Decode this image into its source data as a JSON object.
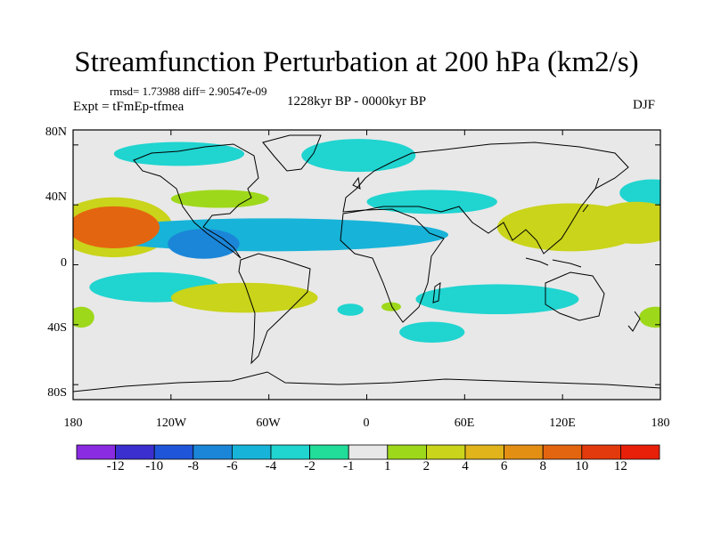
{
  "header": {
    "title": "Streamfunction Perturbation at 200 hPa (km2/s)",
    "stats": "rmsd= 1.73988 diff= 2.90547e-09",
    "experiment": "Expt = tFmEp-tfmea",
    "period": "1228kyr BP - 0000kyr BP",
    "season": "DJF"
  },
  "axes": {
    "lat_labels": [
      "80N",
      "40N",
      "0",
      "40S",
      "80S"
    ],
    "lon_labels": [
      "180",
      "120W",
      "60W",
      "0",
      "60E",
      "120E",
      "180"
    ]
  },
  "colorbar": {
    "labels": [
      "-12",
      "-10",
      "-8",
      "-6",
      "-4",
      "-2",
      "-1",
      "1",
      "2",
      "4",
      "6",
      "8",
      "10",
      "12"
    ],
    "colors": [
      "#8a2be2",
      "#3b2fd0",
      "#1f55d8",
      "#1b86d8",
      "#18b3d8",
      "#20d4d0",
      "#22dc9a",
      "#e8e8e8",
      "#9ed81a",
      "#c9d41a",
      "#e0b41a",
      "#e38f14",
      "#e4650f",
      "#e23a0c",
      "#e8200a"
    ]
  },
  "chart_data": {
    "type": "map",
    "variable": "200 hPa streamfunction perturbation",
    "units": "km2/s",
    "lat_range": [
      -90,
      90
    ],
    "lon_range": [
      -180,
      180
    ],
    "contour_levels": [
      -12,
      -10,
      -8,
      -6,
      -4,
      -2,
      -1,
      1,
      2,
      4,
      6,
      8,
      10,
      12
    ],
    "anomalies": [
      {
        "name": "north-pacific-high",
        "lon": -155,
        "lat": 25,
        "value": 9,
        "lon_half_width": 28,
        "lat_half_height": 14
      },
      {
        "name": "north-pacific-ring",
        "lon": -155,
        "lat": 25,
        "value": 4,
        "lon_half_width": 36,
        "lat_half_height": 20
      },
      {
        "name": "tropical-atlantic-low",
        "lon": -60,
        "lat": 20,
        "value": -4,
        "lon_half_width": 110,
        "lat_half_height": 11
      },
      {
        "name": "west-atlantic-low-core",
        "lon": -100,
        "lat": 14,
        "value": -6,
        "lon_half_width": 22,
        "lat_half_height": 10
      },
      {
        "name": "north-america-arctic-low",
        "lon": -115,
        "lat": 74,
        "value": -2,
        "lon_half_width": 40,
        "lat_half_height": 8
      },
      {
        "name": "north-atlantic-arctic-low",
        "lon": -5,
        "lat": 73,
        "value": -2,
        "lon_half_width": 35,
        "lat_half_height": 11
      },
      {
        "name": "north-america-midlat-high",
        "lon": -90,
        "lat": 44,
        "value": 2,
        "lon_half_width": 30,
        "lat_half_height": 6
      },
      {
        "name": "europe-midlat-low",
        "lon": 40,
        "lat": 42,
        "value": -2,
        "lon_half_width": 40,
        "lat_half_height": 8
      },
      {
        "name": "asia-subtropical-high",
        "lon": 125,
        "lat": 25,
        "value": 3,
        "lon_half_width": 45,
        "lat_half_height": 16
      },
      {
        "name": "east-asia-high",
        "lon": 165,
        "lat": 28,
        "value": 4,
        "lon_half_width": 28,
        "lat_half_height": 14
      },
      {
        "name": "north-pacific-east-low",
        "lon": 175,
        "lat": 48,
        "value": -3,
        "lon_half_width": 20,
        "lat_half_height": 9
      },
      {
        "name": "south-pacific-low",
        "lon": -130,
        "lat": -15,
        "value": -3,
        "lon_half_width": 40,
        "lat_half_height": 10
      },
      {
        "name": "south-america-high",
        "lon": -75,
        "lat": -22,
        "value": 3,
        "lon_half_width": 45,
        "lat_half_height": 10
      },
      {
        "name": "south-atlantic-low",
        "lon": -10,
        "lat": -30,
        "value": -2,
        "lon_half_width": 8,
        "lat_half_height": 4
      },
      {
        "name": "south-africa-high",
        "lon": 15,
        "lat": -28,
        "value": 2,
        "lon_half_width": 6,
        "lat_half_height": 3
      },
      {
        "name": "indian-ocean-low",
        "lon": 80,
        "lat": -23,
        "value": -2,
        "lon_half_width": 50,
        "lat_half_height": 10
      },
      {
        "name": "southern-ocean-low",
        "lon": 40,
        "lat": -45,
        "value": -2,
        "lon_half_width": 20,
        "lat_half_height": 7
      },
      {
        "name": "southeast-pacific-high",
        "lon": 177,
        "lat": -35,
        "value": 2,
        "lon_half_width": 10,
        "lat_half_height": 7
      },
      {
        "name": "southwest-pacific-high",
        "lon": -175,
        "lat": -35,
        "value": 2,
        "lon_half_width": 8,
        "lat_half_height": 7
      }
    ]
  }
}
